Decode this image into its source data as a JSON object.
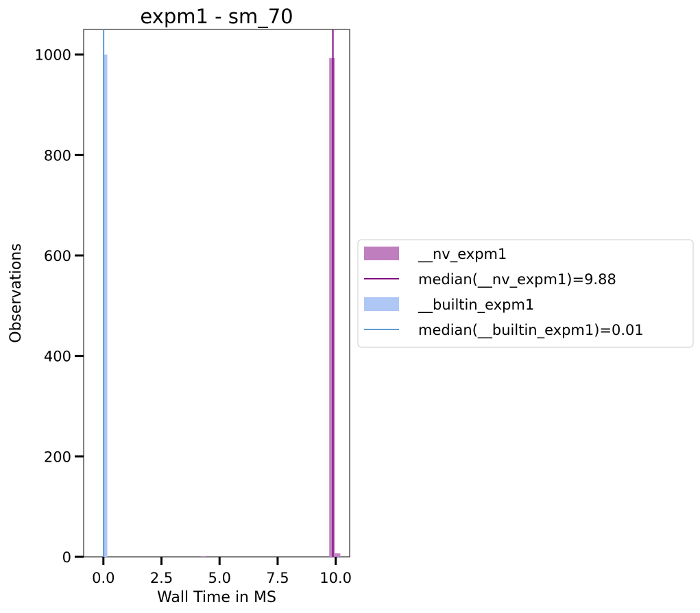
{
  "chart_data": {
    "type": "bar",
    "title": "expm1 - sm_70",
    "xlabel": "Wall Time in MS",
    "ylabel": "Observations",
    "xlim": [
      -0.85,
      10.6
    ],
    "ylim": [
      0,
      1050
    ],
    "xticks": [
      0.0,
      2.5,
      5.0,
      7.5,
      10.0
    ],
    "xtick_labels": [
      "0.0",
      "2.5",
      "5.0",
      "7.5",
      "10.0"
    ],
    "yticks": [
      0,
      200,
      400,
      600,
      800,
      1000
    ],
    "ytick_labels": [
      "0",
      "200",
      "400",
      "600",
      "800",
      "1000"
    ],
    "grid": false,
    "legend_position": "outside-right",
    "series": [
      {
        "name": "__nv_expm1",
        "kind": "histogram",
        "color": "#bf7fbf",
        "bins": [
          {
            "x0": 4.18,
            "x1": 4.42,
            "count": 1
          },
          {
            "x0": 9.72,
            "x1": 9.96,
            "count": 993
          },
          {
            "x0": 9.96,
            "x1": 10.2,
            "count": 7
          }
        ]
      },
      {
        "name": "__builtin_expm1",
        "kind": "histogram",
        "color": "#aec7f5",
        "bins": [
          {
            "x0": -0.02,
            "x1": 0.17,
            "count": 1000
          }
        ]
      }
    ],
    "medians": [
      {
        "label": "median(__nv_expm1)=9.88",
        "x": 9.88,
        "color": "#800080"
      },
      {
        "label": "median(__builtin_expm1)=0.01",
        "x": 0.01,
        "color": "#5b9bd5"
      }
    ],
    "legend": [
      {
        "label": "__nv_expm1",
        "kind": "patch",
        "color": "#bf7fbf"
      },
      {
        "label": "median(__nv_expm1)=9.88",
        "kind": "line",
        "color": "#800080"
      },
      {
        "label": "__builtin_expm1",
        "kind": "patch",
        "color": "#aec7f5"
      },
      {
        "label": "median(__builtin_expm1)=0.01",
        "kind": "line",
        "color": "#5b9bd5"
      }
    ]
  }
}
